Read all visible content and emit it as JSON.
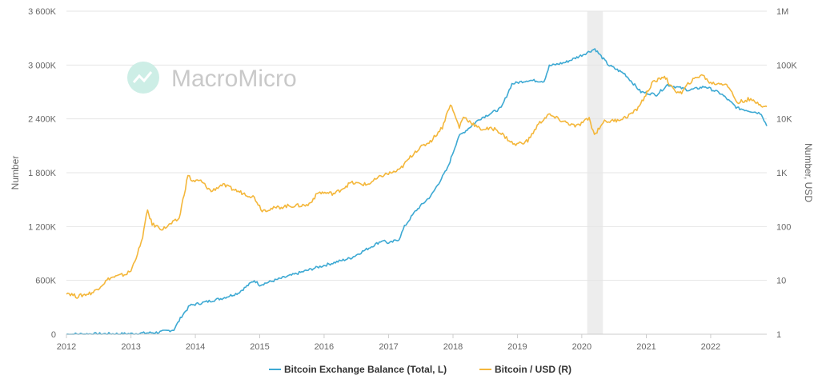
{
  "chart_data": {
    "type": "line",
    "title": "",
    "watermark": "MacroMicro",
    "x_range": [
      "2012-01-01",
      "2022-11-15"
    ],
    "x_ticks": [
      "2012",
      "2013",
      "2014",
      "2015",
      "2016",
      "2017",
      "2018",
      "2019",
      "2020",
      "2021",
      "2022"
    ],
    "y_left": {
      "label": "Number",
      "range": [
        0,
        3600000
      ],
      "ticks": [
        0,
        600000,
        1200000,
        1800000,
        2400000,
        3000000,
        3600000
      ],
      "tick_labels": [
        "0",
        "600K",
        "1 200K",
        "1 800K",
        "2 400K",
        "3 000K",
        "3 600K"
      ]
    },
    "y_right": {
      "label": "Number, USD",
      "scale": "log",
      "range": [
        1,
        1000000
      ],
      "ticks": [
        1,
        10,
        100,
        1000,
        10000,
        100000,
        1000000
      ],
      "tick_labels": [
        "1",
        "10",
        "100",
        "1K",
        "10K",
        "100K",
        "1M"
      ]
    },
    "shaded_band": {
      "from": "2020-02-01",
      "to": "2020-04-30",
      "color": "#e6e6e6"
    },
    "grid": true,
    "legend": "bottom-center",
    "series": [
      {
        "name": "Bitcoin Exchange Balance (Total, L)",
        "axis": "left",
        "color": "#3da9d3",
        "points": [
          [
            "2012-01-01",
            0
          ],
          [
            "2012-06-01",
            3000
          ],
          [
            "2013-01-01",
            5000
          ],
          [
            "2013-06-01",
            20000
          ],
          [
            "2013-09-01",
            50000
          ],
          [
            "2013-10-15",
            200000
          ],
          [
            "2013-12-01",
            320000
          ],
          [
            "2014-06-01",
            400000
          ],
          [
            "2014-09-01",
            460000
          ],
          [
            "2014-12-01",
            600000
          ],
          [
            "2015-01-01",
            550000
          ],
          [
            "2015-06-01",
            640000
          ],
          [
            "2015-12-01",
            750000
          ],
          [
            "2016-06-01",
            850000
          ],
          [
            "2016-12-01",
            1050000
          ],
          [
            "2017-01-01",
            1010000
          ],
          [
            "2017-03-01",
            1060000
          ],
          [
            "2017-04-01",
            1200000
          ],
          [
            "2017-06-01",
            1370000
          ],
          [
            "2017-09-01",
            1550000
          ],
          [
            "2017-12-01",
            1850000
          ],
          [
            "2018-02-01",
            2200000
          ],
          [
            "2018-06-01",
            2400000
          ],
          [
            "2018-10-01",
            2520000
          ],
          [
            "2018-12-01",
            2790000
          ],
          [
            "2019-03-01",
            2830000
          ],
          [
            "2019-06-01",
            2820000
          ],
          [
            "2019-07-01",
            2990000
          ],
          [
            "2019-10-01",
            3030000
          ],
          [
            "2020-01-01",
            3110000
          ],
          [
            "2020-03-15",
            3180000
          ],
          [
            "2020-06-01",
            3000000
          ],
          [
            "2020-09-01",
            2900000
          ],
          [
            "2020-12-01",
            2700000
          ],
          [
            "2021-03-01",
            2670000
          ],
          [
            "2021-05-01",
            2780000
          ],
          [
            "2021-09-01",
            2720000
          ],
          [
            "2021-12-01",
            2760000
          ],
          [
            "2022-03-01",
            2680000
          ],
          [
            "2022-06-01",
            2520000
          ],
          [
            "2022-09-01",
            2480000
          ],
          [
            "2022-10-15",
            2460000
          ],
          [
            "2022-11-15",
            2320000
          ]
        ]
      },
      {
        "name": "Bitcoin / USD (R)",
        "axis": "right",
        "color": "#f4b73b",
        "points": [
          [
            "2012-01-01",
            6
          ],
          [
            "2012-03-01",
            5
          ],
          [
            "2012-06-01",
            6
          ],
          [
            "2012-09-01",
            11
          ],
          [
            "2012-12-01",
            13
          ],
          [
            "2013-01-01",
            15
          ],
          [
            "2013-03-01",
            50
          ],
          [
            "2013-04-05",
            200
          ],
          [
            "2013-05-01",
            110
          ],
          [
            "2013-07-01",
            90
          ],
          [
            "2013-10-01",
            140
          ],
          [
            "2013-11-20",
            900
          ],
          [
            "2013-12-15",
            700
          ],
          [
            "2014-02-01",
            700
          ],
          [
            "2014-04-01",
            450
          ],
          [
            "2014-06-01",
            600
          ],
          [
            "2014-09-01",
            450
          ],
          [
            "2014-12-01",
            350
          ],
          [
            "2015-01-15",
            200
          ],
          [
            "2015-06-01",
            240
          ],
          [
            "2015-10-01",
            250
          ],
          [
            "2015-12-01",
            430
          ],
          [
            "2016-03-01",
            410
          ],
          [
            "2016-06-01",
            650
          ],
          [
            "2016-09-01",
            600
          ],
          [
            "2016-12-01",
            900
          ],
          [
            "2017-03-01",
            1100
          ],
          [
            "2017-06-01",
            2500
          ],
          [
            "2017-09-01",
            4000
          ],
          [
            "2017-11-01",
            7000
          ],
          [
            "2017-12-17",
            19000
          ],
          [
            "2018-02-06",
            7000
          ],
          [
            "2018-03-01",
            11000
          ],
          [
            "2018-06-01",
            6500
          ],
          [
            "2018-09-01",
            6500
          ],
          [
            "2018-11-15",
            4000
          ],
          [
            "2018-12-15",
            3300
          ],
          [
            "2019-03-01",
            3900
          ],
          [
            "2019-05-01",
            8000
          ],
          [
            "2019-06-26",
            12000
          ],
          [
            "2019-09-01",
            9500
          ],
          [
            "2019-12-01",
            7200
          ],
          [
            "2020-02-12",
            10200
          ],
          [
            "2020-03-13",
            5000
          ],
          [
            "2020-05-01",
            8800
          ],
          [
            "2020-07-01",
            9200
          ],
          [
            "2020-09-01",
            10500
          ],
          [
            "2020-11-01",
            14000
          ],
          [
            "2020-12-15",
            23000
          ],
          [
            "2021-02-01",
            45000
          ],
          [
            "2021-04-14",
            63000
          ],
          [
            "2021-06-01",
            35000
          ],
          [
            "2021-07-20",
            30000
          ],
          [
            "2021-09-01",
            47000
          ],
          [
            "2021-11-10",
            67000
          ],
          [
            "2022-01-01",
            46000
          ],
          [
            "2022-04-01",
            45000
          ],
          [
            "2022-06-01",
            20000
          ],
          [
            "2022-08-01",
            23000
          ],
          [
            "2022-10-01",
            19500
          ],
          [
            "2022-11-10",
            16500
          ],
          [
            "2022-11-15",
            16800
          ]
        ]
      }
    ]
  }
}
